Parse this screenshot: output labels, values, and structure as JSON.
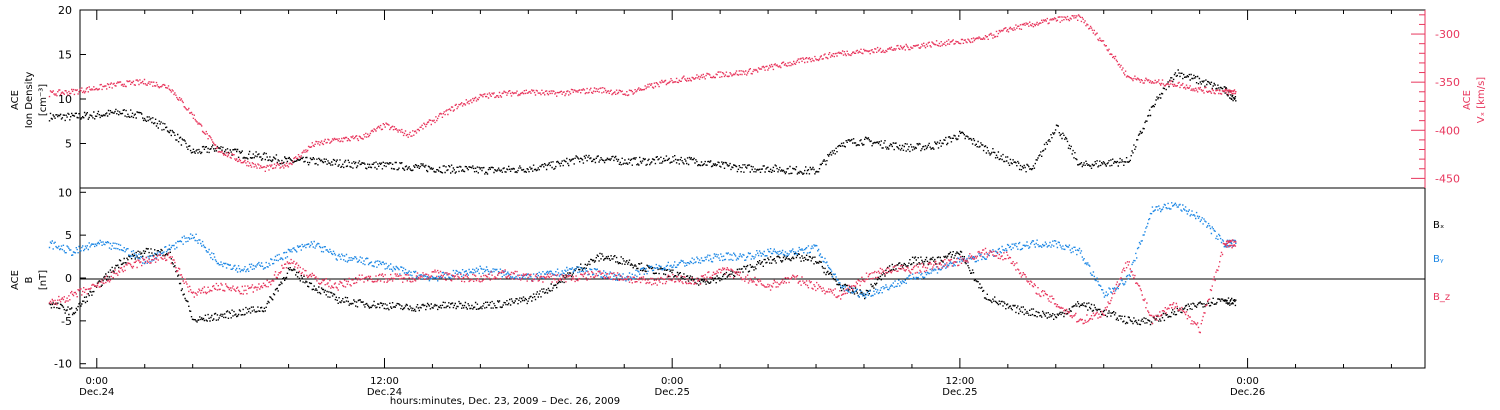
{
  "chart_data": [
    {
      "type": "scatter",
      "panel": "top",
      "left_axis": {
        "label_line1": "ACE",
        "label_line2": "Ion Density",
        "label_line3": "[cm⁻³]",
        "ylim": [
          0,
          20
        ],
        "ticks": [
          5,
          10,
          15,
          20
        ],
        "tick_labels": [
          "5",
          "10",
          "15",
          "20"
        ]
      },
      "right_axis": {
        "label_line1": "ACE",
        "label_line2": "Vₓ [km/s]",
        "ylim": [
          -460,
          -275
        ],
        "ticks": [
          -300,
          -350,
          -400,
          -450
        ],
        "tick_labels": [
          "-300",
          "-350",
          "-400",
          "-450"
        ]
      },
      "series": [
        {
          "name": "Ion Density",
          "color": "#000000",
          "axis": "left",
          "x_hours": [
            -2,
            -1,
            0,
            1,
            2,
            3,
            4,
            5,
            6,
            7,
            8,
            9,
            10,
            11,
            12,
            13,
            14,
            15,
            16,
            17,
            18,
            19,
            20,
            21,
            22,
            23,
            24,
            25,
            26,
            27,
            28,
            29,
            30,
            31,
            32,
            33,
            34,
            35,
            36,
            37,
            38,
            39,
            40,
            41,
            42,
            43,
            44,
            45,
            46,
            47,
            47.5
          ],
          "y": [
            8,
            8,
            8.2,
            8.5,
            8,
            6.5,
            4,
            4.5,
            3.8,
            3.5,
            3,
            3,
            2.8,
            2.6,
            2.5,
            2.4,
            2.2,
            2.1,
            2,
            2,
            2.2,
            2.5,
            3.2,
            3.3,
            3,
            3,
            3.2,
            3,
            2.5,
            2.2,
            2.2,
            2,
            1.9,
            5,
            5.3,
            4.8,
            4.5,
            4.8,
            6,
            4.5,
            3,
            2,
            7,
            2.5,
            2.8,
            3,
            9,
            13,
            12,
            11,
            10
          ]
        },
        {
          "name": "Vx",
          "color": "#e8365d",
          "axis": "right",
          "x_hours": [
            -2,
            -1,
            0,
            1,
            2,
            3,
            4,
            5,
            6,
            7,
            8,
            9,
            10,
            11,
            12,
            13,
            14,
            15,
            16,
            17,
            18,
            19,
            20,
            21,
            22,
            23,
            24,
            25,
            26,
            27,
            28,
            29,
            30,
            31,
            32,
            33,
            34,
            35,
            36,
            37,
            38,
            39,
            40,
            41,
            42,
            43,
            44,
            45,
            46,
            47,
            47.5
          ],
          "y": [
            -362,
            -360,
            -356,
            -352,
            -350,
            -355,
            -385,
            -420,
            -432,
            -440,
            -435,
            -415,
            -410,
            -408,
            -395,
            -405,
            -390,
            -375,
            -365,
            -362,
            -360,
            -362,
            -360,
            -358,
            -362,
            -355,
            -348,
            -345,
            -342,
            -340,
            -335,
            -330,
            -325,
            -320,
            -318,
            -316,
            -313,
            -310,
            -308,
            -305,
            -295,
            -290,
            -285,
            -283,
            -310,
            -345,
            -350,
            -352,
            -358,
            -360,
            -360
          ]
        }
      ]
    },
    {
      "type": "scatter",
      "panel": "bottom",
      "left_axis": {
        "label_line1": "ACE",
        "label_line2": "B",
        "label_line3": "[nT]",
        "ylim": [
          -10.5,
          10.5
        ],
        "ticks": [
          -10,
          -5,
          0,
          5,
          10
        ],
        "tick_labels": [
          "-10",
          "-5",
          "0",
          "5",
          "10"
        ]
      },
      "legend": [
        "Bₓ",
        "Bᵧ",
        "B_z"
      ],
      "series": [
        {
          "name": "Bₓ",
          "color": "#000000",
          "x_hours": [
            -2,
            -1,
            0,
            1,
            2,
            3,
            4,
            5,
            6,
            7,
            8,
            9,
            10,
            11,
            12,
            13,
            14,
            15,
            16,
            17,
            18,
            19,
            20,
            21,
            22,
            23,
            24,
            25,
            26,
            27,
            28,
            29,
            30,
            31,
            32,
            33,
            34,
            35,
            36,
            37,
            38,
            39,
            40,
            41,
            42,
            43,
            44,
            45,
            46,
            47,
            47.5
          ],
          "y": [
            -3,
            -4,
            -1,
            2,
            3,
            3,
            -5,
            -4.5,
            -4,
            -3.5,
            1,
            -1,
            -2.5,
            -3,
            -3.2,
            -3.5,
            -3.3,
            -3.2,
            -3.2,
            -3,
            -2.5,
            -1,
            1,
            2.5,
            2,
            1,
            0.5,
            -0.5,
            0,
            1,
            2,
            2.5,
            2,
            -1,
            -2,
            1,
            2,
            2,
            3,
            -2,
            -3.5,
            -4,
            -4.5,
            -3,
            -4,
            -5,
            -5,
            -4,
            -3,
            -2.5,
            -3
          ]
        },
        {
          "name": "Bᵧ",
          "color": "#1e88e5",
          "x_hours": [
            -2,
            -1,
            0,
            1,
            2,
            3,
            4,
            5,
            6,
            7,
            8,
            9,
            10,
            11,
            12,
            13,
            14,
            15,
            16,
            17,
            18,
            19,
            20,
            21,
            22,
            23,
            24,
            25,
            26,
            27,
            28,
            29,
            30,
            31,
            32,
            33,
            34,
            35,
            36,
            37,
            38,
            39,
            40,
            41,
            42,
            43,
            44,
            45,
            46,
            47,
            47.5
          ],
          "y": [
            4,
            3,
            4,
            3.5,
            2,
            3.5,
            5,
            2,
            1,
            1.5,
            3,
            4,
            2.5,
            2,
            1.5,
            0.5,
            0,
            0.5,
            1,
            0.5,
            0,
            0.5,
            1,
            0.5,
            0,
            1,
            1.5,
            2,
            2.5,
            2.5,
            3,
            3,
            3.5,
            -1,
            -2,
            -1,
            0,
            1,
            2,
            2.5,
            3.5,
            4,
            4,
            3,
            -2,
            0,
            8,
            8.5,
            7,
            4,
            4
          ]
        },
        {
          "name": "B_z",
          "color": "#e8365d",
          "x_hours": [
            -2,
            -1,
            0,
            1,
            2,
            3,
            4,
            5,
            6,
            7,
            8,
            9,
            10,
            11,
            12,
            13,
            14,
            15,
            16,
            17,
            18,
            19,
            20,
            21,
            22,
            23,
            24,
            25,
            26,
            27,
            28,
            29,
            30,
            31,
            32,
            33,
            34,
            35,
            36,
            37,
            38,
            39,
            40,
            41,
            42,
            43,
            44,
            45,
            46,
            47,
            47.5
          ],
          "y": [
            -3,
            -2,
            -1,
            1,
            2,
            2.5,
            -2,
            -1,
            -1.5,
            -1,
            2,
            0,
            -1,
            0,
            0,
            0,
            0.5,
            0,
            0,
            0.5,
            0,
            0,
            0,
            0.5,
            0,
            -0.5,
            0,
            -0.5,
            1,
            0,
            -1,
            0,
            -1,
            -2,
            0,
            1,
            1,
            1.5,
            2,
            3,
            2.5,
            -1,
            -3,
            -5,
            -4,
            2,
            -5,
            -3,
            -6,
            4,
            4
          ]
        }
      ]
    }
  ],
  "x_axis": {
    "title": "hours:minutes, Dec. 23, 2009 – Dec. 26, 2009",
    "ticks_hours": [
      0,
      12,
      24,
      36,
      48
    ],
    "tick_labels": [
      {
        "time": "0:00",
        "date": "Dec.24"
      },
      {
        "time": "12:00",
        "date": "Dec.24"
      },
      {
        "time": "0:00",
        "date": "Dec.25"
      },
      {
        "time": "12:00",
        "date": "Dec.25"
      },
      {
        "time": "0:00",
        "date": "Dec.26"
      }
    ],
    "xlim_hours": [
      -0.7,
      55.4
    ]
  },
  "colors": {
    "black": "#000000",
    "blue": "#1e88e5",
    "red": "#e8365d"
  }
}
